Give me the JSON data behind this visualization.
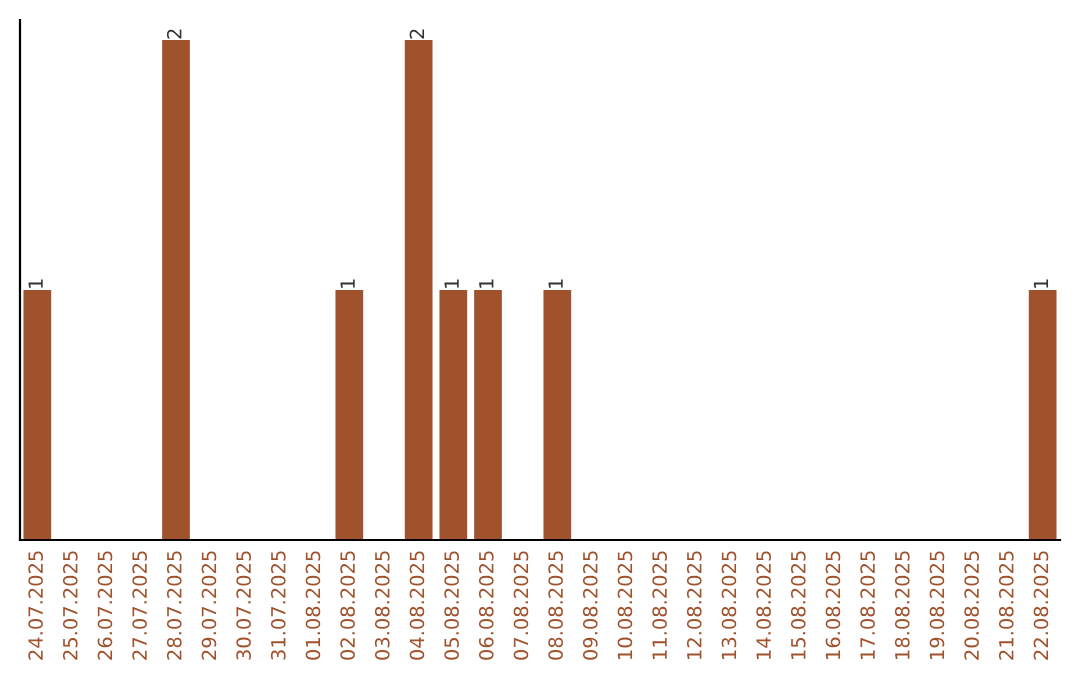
{
  "chart_data": {
    "type": "bar",
    "categories": [
      "24.07.2025",
      "25.07.2025",
      "26.07.2025",
      "27.07.2025",
      "28.07.2025",
      "29.07.2025",
      "30.07.2025",
      "31.07.2025",
      "01.08.2025",
      "02.08.2025",
      "03.08.2025",
      "04.08.2025",
      "05.08.2025",
      "06.08.2025",
      "07.08.2025",
      "08.08.2025",
      "09.08.2025",
      "10.08.2025",
      "11.08.2025",
      "12.08.2025",
      "13.08.2025",
      "14.08.2025",
      "15.08.2025",
      "16.08.2025",
      "17.08.2025",
      "18.08.2025",
      "19.08.2025",
      "20.08.2025",
      "21.08.2025",
      "22.08.2025"
    ],
    "values": [
      1,
      0,
      0,
      0,
      2,
      0,
      0,
      0,
      0,
      1,
      0,
      2,
      1,
      1,
      0,
      1,
      0,
      0,
      0,
      0,
      0,
      0,
      0,
      0,
      0,
      0,
      0,
      0,
      0,
      1
    ],
    "value_labels": [
      "1",
      null,
      null,
      null,
      "2",
      null,
      null,
      null,
      null,
      "1",
      null,
      "2",
      "1",
      "1",
      null,
      "1",
      null,
      null,
      null,
      null,
      null,
      null,
      null,
      null,
      null,
      null,
      null,
      null,
      null,
      "1"
    ],
    "color": "#a0522d",
    "tick_labels": "x",
    "grid": false,
    "legend": false
  }
}
